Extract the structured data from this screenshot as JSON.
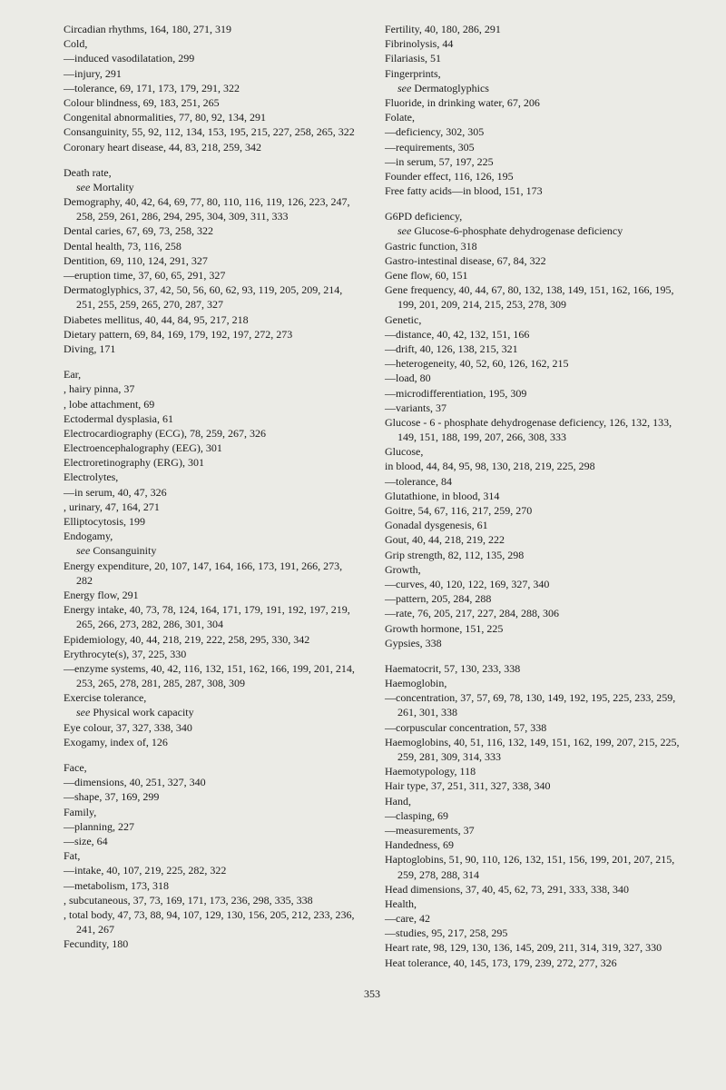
{
  "page_number": "353",
  "left_column": [
    "Circadian rhythms, 164, 180, 271, 319",
    "Cold,",
    "—induced vasodilatation, 299",
    "—injury, 291",
    "—tolerance, 69, 171, 173, 179, 291, 322",
    "Colour blindness, 69, 183, 251, 265",
    "Congenital abnormalities, 77, 80, 92, 134, 291",
    "Consanguinity, 55, 92, 112, 134, 153, 195, 215, 227, 258, 265, 322",
    "Coronary heart disease, 44, 83, 218, 259, 342",
    "",
    "Death rate,",
    "see Mortality",
    "Demography, 40, 42, 64, 69, 77, 80, 110, 116, 119, 126, 223, 247, 258, 259, 261, 286, 294, 295, 304, 309, 311, 333",
    "Dental caries, 67, 69, 73, 258, 322",
    "Dental health, 73, 116, 258",
    "Dentition, 69, 110, 124, 291, 327",
    "—eruption time, 37, 60, 65, 291, 327",
    "Dermatoglyphics, 37, 42, 50, 56, 60, 62, 93, 119, 205, 209, 214, 251, 255, 259, 265, 270, 287, 327",
    "Diabetes mellitus, 40, 44, 84, 95, 217, 218",
    "Dietary pattern, 69, 84, 169, 179, 192, 197, 272, 273",
    "Diving, 171",
    "",
    "Ear,",
    ", hairy pinna, 37",
    ", lobe attachment, 69",
    "Ectodermal dysplasia, 61",
    "Electrocardiography (ECG), 78, 259, 267, 326",
    "Electroencephalography (EEG), 301",
    "Electroretinography (ERG), 301",
    "Electrolytes,",
    "—in serum, 40, 47, 326",
    ", urinary, 47, 164, 271",
    "Elliptocytosis, 199",
    "Endogamy,",
    "see Consanguinity",
    "Energy expenditure, 20, 107, 147, 164, 166, 173, 191, 266, 273, 282",
    "Energy flow, 291",
    "Energy intake, 40, 73, 78, 124, 164, 171, 179, 191, 192, 197, 219, 265, 266, 273, 282, 286, 301, 304",
    "Epidemiology, 40, 44, 218, 219, 222, 258, 295, 330, 342",
    "Erythrocyte(s), 37, 225, 330",
    "—enzyme systems, 40, 42, 116, 132, 151, 162, 166, 199, 201, 214, 253, 265, 278, 281, 285, 287, 308, 309",
    "Exercise tolerance,",
    "see Physical work capacity",
    "Eye colour, 37, 327, 338, 340",
    "Exogamy, index of, 126",
    "",
    "Face,",
    "—dimensions, 40, 251, 327, 340",
    "—shape, 37, 169, 299",
    "Family,",
    "—planning, 227",
    "—size, 64",
    "Fat,",
    "—intake, 40, 107, 219, 225, 282, 322",
    "—metabolism, 173, 318",
    ", subcutaneous, 37, 73, 169, 171, 173, 236, 298, 335, 338",
    ", total body, 47, 73, 88, 94, 107, 129, 130, 156, 205, 212, 233, 236, 241, 267",
    "Fecundity, 180"
  ],
  "right_column": [
    "Fertility, 40, 180, 286, 291",
    "Fibrinolysis, 44",
    "Filariasis, 51",
    "Fingerprints,",
    "see Dermatoglyphics",
    "Fluoride, in drinking water, 67, 206",
    "Folate,",
    "—deficiency, 302, 305",
    "—requirements, 305",
    "—in serum, 57, 197, 225",
    "Founder effect, 116, 126, 195",
    "Free fatty acids—in blood, 151, 173",
    "",
    "G6PD deficiency,",
    "see Glucose-6-phosphate dehydrogenase deficiency",
    "Gastric function, 318",
    "Gastro-intestinal disease, 67, 84, 322",
    "Gene flow, 60, 151",
    "Gene frequency, 40, 44, 67, 80, 132, 138, 149, 151, 162, 166, 195, 199, 201, 209, 214, 215, 253, 278, 309",
    "Genetic,",
    "—distance, 40, 42, 132, 151, 166",
    "—drift, 40, 126, 138, 215, 321",
    "—heterogeneity, 40, 52, 60, 126, 162, 215",
    "—load, 80",
    "—microdifferentiation, 195, 309",
    "—variants, 37",
    "Glucose - 6 - phosphate dehydrogenase deficiency, 126, 132, 133, 149, 151, 188, 199, 207, 266, 308, 333",
    "Glucose,",
    "in blood, 44, 84, 95, 98, 130, 218, 219, 225, 298",
    "—tolerance, 84",
    "Glutathione, in blood, 314",
    "Goitre, 54, 67, 116, 217, 259, 270",
    "Gonadal dysgenesis, 61",
    "Gout, 40, 44, 218, 219, 222",
    "Grip strength, 82, 112, 135, 298",
    "Growth,",
    "—curves, 40, 120, 122, 169, 327, 340",
    "—pattern, 205, 284, 288",
    "—rate, 76, 205, 217, 227, 284, 288, 306",
    "Growth hormone, 151, 225",
    "Gypsies, 338",
    "",
    "Haematocrit, 57, 130, 233, 338",
    "Haemoglobin,",
    "—concentration, 37, 57, 69, 78, 130, 149, 192, 195, 225, 233, 259, 261, 301, 338",
    "—corpuscular concentration, 57, 338",
    "Haemoglobins, 40, 51, 116, 132, 149, 151, 162, 199, 207, 215, 225, 259, 281, 309, 314, 333",
    "Haemotypology, 118",
    "Hair type, 37, 251, 311, 327, 338, 340",
    "Hand,",
    "—clasping, 69",
    "—measurements, 37",
    "Handedness, 69",
    "Haptoglobins, 51, 90, 110, 126, 132, 151, 156, 199, 201, 207, 215, 259, 278, 288, 314",
    "Head dimensions, 37, 40, 45, 62, 73, 291, 333, 338, 340",
    "Health,",
    "—care, 42",
    "—studies, 95, 217, 258, 295",
    "Heart rate, 98, 129, 130, 136, 145, 209, 211, 314, 319, 327, 330",
    "Heat tolerance, 40, 145, 173, 179, 239, 272, 277, 326"
  ]
}
